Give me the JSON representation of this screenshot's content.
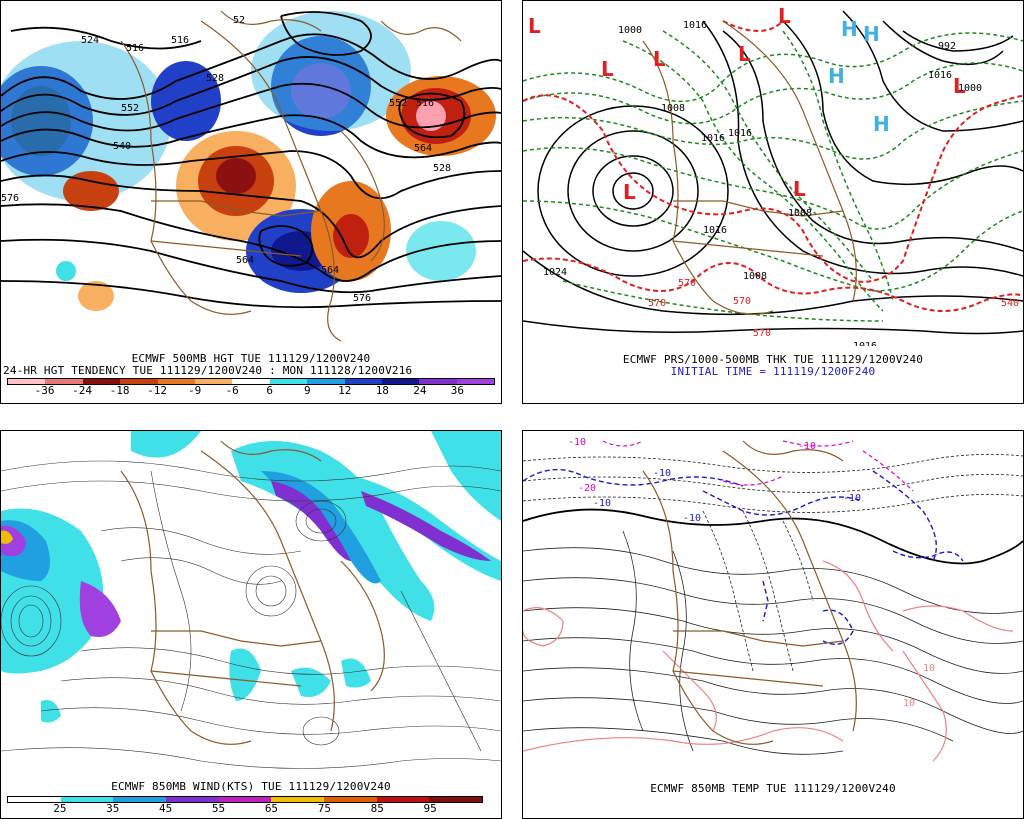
{
  "panel_500mb": {
    "caption_line1": "ECMWF 500MB HGT TUE 111129/1200V240",
    "caption_line2": "24-HR HGT TENDENCY TUE 111129/1200V240 : MON 111128/1200V216",
    "scale_labels": [
      "-36",
      "-24",
      "-18",
      "-12",
      "-9",
      "-6",
      "6",
      "9",
      "12",
      "18",
      "24",
      "36"
    ],
    "scale_colors": [
      "#ffc0c8",
      "#e87878",
      "#8b1010",
      "#c84010",
      "#e87820",
      "#f8b060",
      "#ffffff",
      "#40e0e8",
      "#20a0e8",
      "#2040c8",
      "#101890",
      "#8030d0",
      "#a040e0"
    ],
    "contour_labels": [
      "524",
      "516",
      "516",
      "528",
      "552",
      "540",
      "576",
      "516",
      "564",
      "552",
      "564",
      "576",
      "564",
      "528",
      "52"
    ]
  },
  "panel_prs_thk": {
    "caption_line1": "ECMWF PRS/1000-500MB THK TUE 111129/1200V240",
    "caption_line2": "INITIAL TIME = 111119/1200F240",
    "contour_labels": [
      "1016",
      "1000",
      "1016",
      "992",
      "1000",
      "1008",
      "1016",
      "1016",
      "1008",
      "1024",
      "1016",
      "1008",
      "1016",
      "570",
      "570",
      "570",
      "540",
      "570"
    ],
    "low_marker": "L",
    "high_marker": "H"
  },
  "panel_850wind": {
    "caption_line1": "ECMWF 850MB WIND(KTS) TUE 111129/1200V240",
    "scale_labels": [
      "25",
      "35",
      "45",
      "55",
      "65",
      "75",
      "85",
      "95"
    ],
    "scale_colors": [
      "#ffffff",
      "#40e0e8",
      "#20a0e0",
      "#8030d0",
      "#c020c0",
      "#f0c000",
      "#e06000",
      "#c01010",
      "#801010"
    ]
  },
  "panel_850temp": {
    "caption_line1": "ECMWF 850MB TEMP TUE 111129/1200V240",
    "contour_labels": [
      "-10",
      "-10",
      "-10",
      "-10",
      "-10",
      "10",
      "10",
      "-10",
      "-20"
    ]
  }
}
